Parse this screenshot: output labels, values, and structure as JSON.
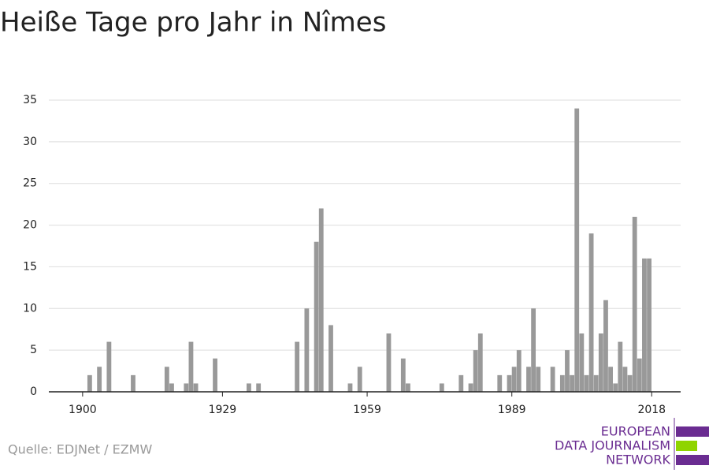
{
  "chart_data": {
    "type": "bar",
    "title": "Heiße Tage pro Jahr in Nîmes",
    "source": "Quelle: EDJNet / EZMW",
    "logo": [
      "EUROPEAN",
      "DATA JOURNALISM",
      "NETWORK"
    ],
    "x": [
      1901,
      1903,
      1905,
      1910,
      1917,
      1918,
      1921,
      1922,
      1923,
      1927,
      1934,
      1936,
      1944,
      1946,
      1948,
      1949,
      1951,
      1955,
      1957,
      1963,
      1966,
      1967,
      1974,
      1978,
      1980,
      1981,
      1982,
      1986,
      1988,
      1989,
      1990,
      1992,
      1993,
      1994,
      1997,
      1999,
      2000,
      2001,
      2002,
      2003,
      2004,
      2005,
      2006,
      2007,
      2008,
      2009,
      2010,
      2011,
      2012,
      2013,
      2014,
      2015,
      2016,
      2017
    ],
    "values": [
      2,
      3,
      6,
      2,
      3,
      1,
      1,
      6,
      1,
      4,
      1,
      1,
      6,
      10,
      18,
      22,
      8,
      1,
      3,
      7,
      4,
      1,
      1,
      2,
      1,
      5,
      7,
      2,
      2,
      3,
      5,
      3,
      10,
      3,
      3,
      2,
      5,
      2,
      34,
      7,
      2,
      19,
      2,
      7,
      11,
      3,
      1,
      6,
      3,
      2,
      21,
      4,
      16,
      16
    ],
    "color": "#999999",
    "xlim": [
      1893,
      2024
    ],
    "xticks": [
      1900,
      1929,
      1959,
      1989,
      2018
    ],
    "ylim": [
      0,
      35
    ],
    "yticks": [
      0,
      5,
      10,
      15,
      20,
      25,
      30,
      35
    ],
    "grid": true
  }
}
